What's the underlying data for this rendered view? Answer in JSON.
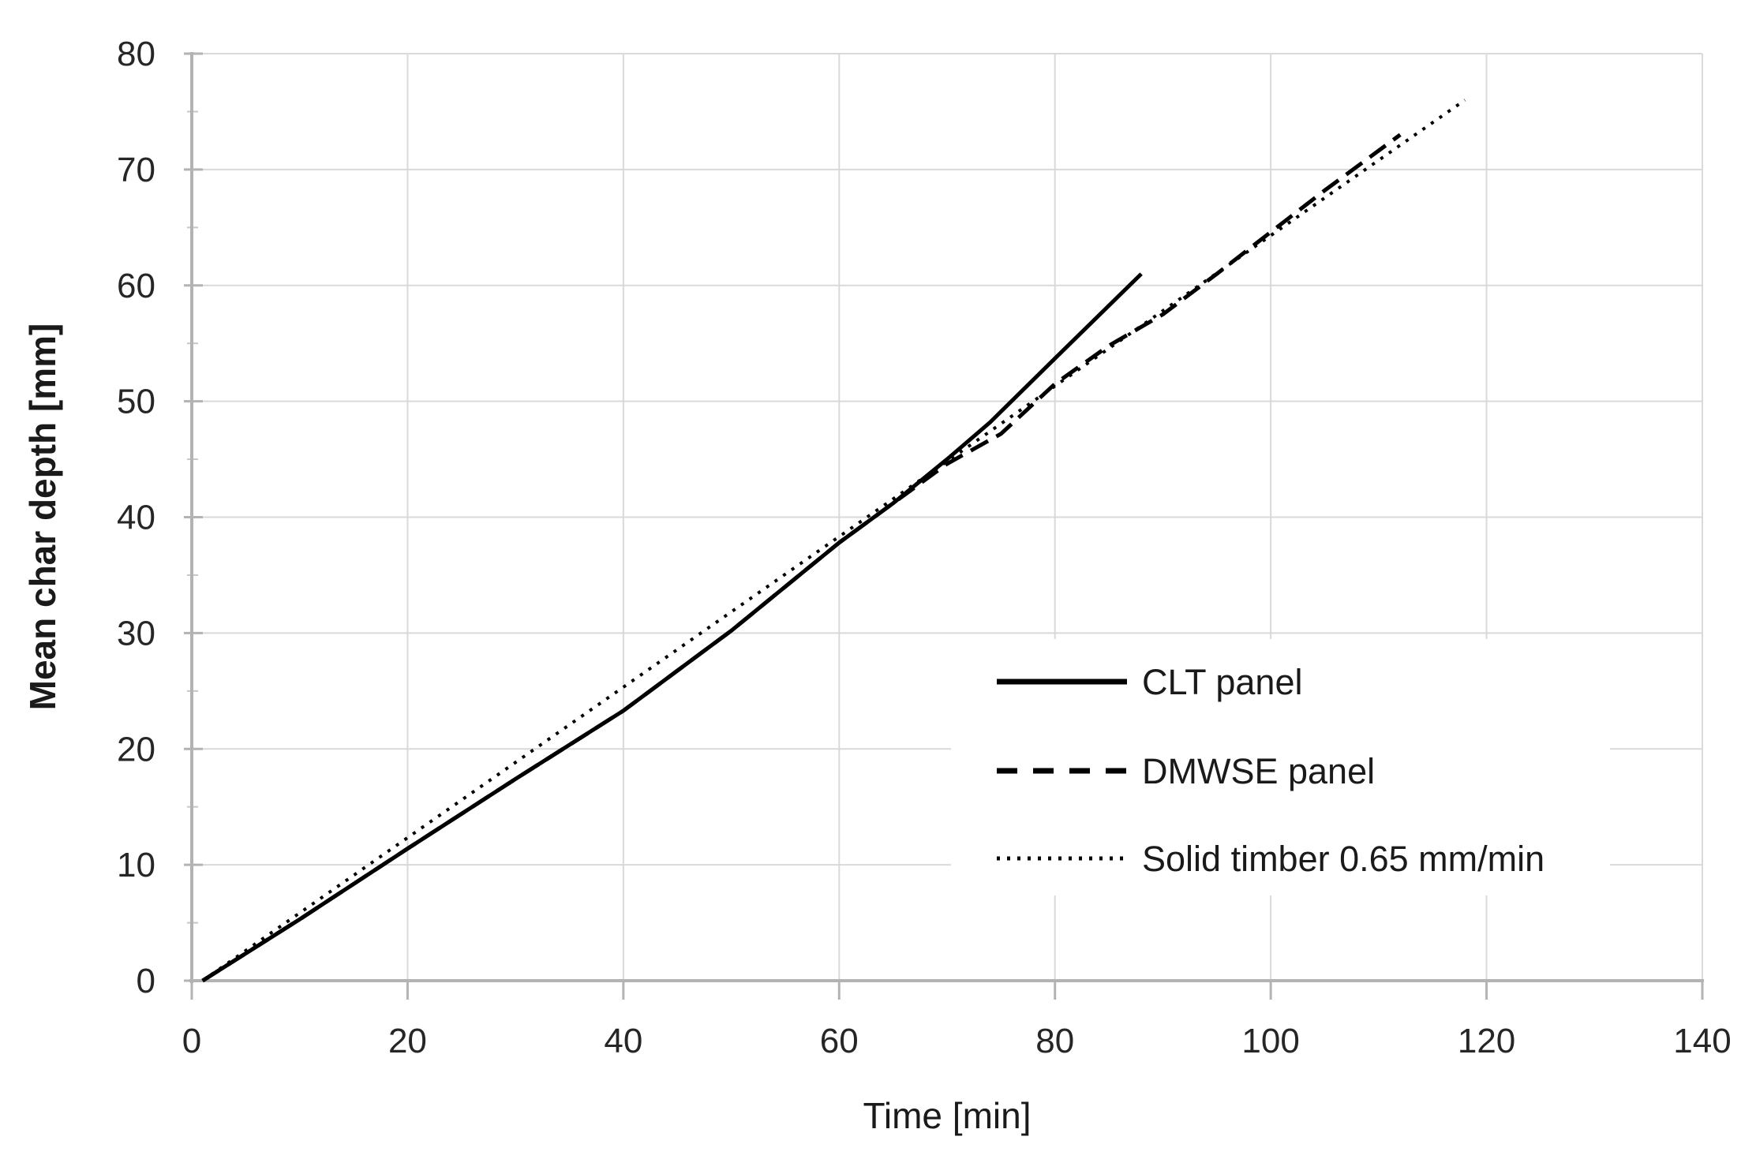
{
  "chart_data": {
    "type": "line",
    "title": "",
    "xlabel": "Time [min]",
    "ylabel": "Mean char depth [mm]",
    "xlim": [
      0,
      140
    ],
    "ylim": [
      0,
      80
    ],
    "xticks": [
      0,
      20,
      40,
      60,
      80,
      100,
      120,
      140
    ],
    "yticks": [
      0,
      10,
      20,
      30,
      40,
      50,
      60,
      70,
      80
    ],
    "y_minor_tick_step": 5,
    "grid": true,
    "legend_position": "inside-right",
    "series": [
      {
        "name": "CLT panel",
        "style": "solid",
        "color": "#000000",
        "points": [
          [
            1,
            0
          ],
          [
            10,
            5.3
          ],
          [
            20,
            11.4
          ],
          [
            30,
            17.4
          ],
          [
            40,
            23.3
          ],
          [
            50,
            30.2
          ],
          [
            60,
            37.8
          ],
          [
            65,
            41.2
          ],
          [
            70,
            45.0
          ],
          [
            74,
            48.2
          ],
          [
            80,
            53.7
          ],
          [
            88,
            61.0
          ]
        ]
      },
      {
        "name": "DMWSE panel",
        "style": "dashed",
        "color": "#000000",
        "points": [
          [
            1,
            0
          ],
          [
            10,
            5.3
          ],
          [
            20,
            11.4
          ],
          [
            30,
            17.4
          ],
          [
            40,
            23.3
          ],
          [
            50,
            30.2
          ],
          [
            60,
            37.8
          ],
          [
            65,
            41.2
          ],
          [
            70,
            44.6
          ],
          [
            75,
            47.2
          ],
          [
            80,
            51.5
          ],
          [
            85,
            54.8
          ],
          [
            90,
            57.5
          ],
          [
            95,
            61.0
          ],
          [
            100,
            64.6
          ],
          [
            105,
            68.2
          ],
          [
            112,
            73.0
          ]
        ]
      },
      {
        "name": "Solid timber 0.65 mm/min",
        "style": "dotted",
        "color": "#000000",
        "points": [
          [
            1,
            0
          ],
          [
            118,
            76.0
          ]
        ]
      }
    ],
    "colors": {
      "gridline": "#d9d9d9",
      "axis": "#b3b3b3",
      "minor_tick": "#c6c6c6",
      "tick_text": "#262626",
      "line": "#000000",
      "background": "#ffffff"
    }
  }
}
